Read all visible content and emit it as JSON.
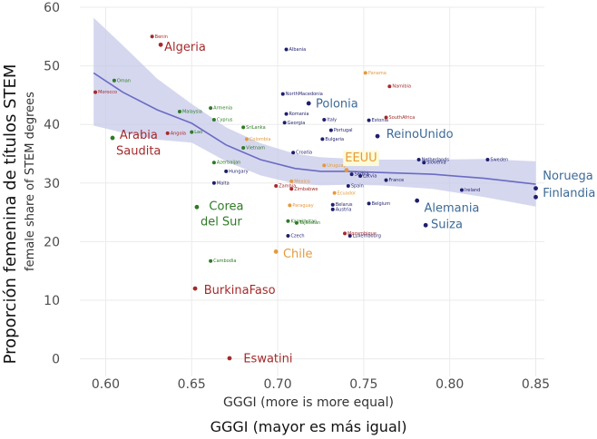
{
  "colors": {
    "band": "#c7c9ea",
    "line": "#6b6bc2",
    "region": {
      "red": "#a52a2a",
      "blue": "#1f1f6e",
      "green": "#2f7a26",
      "orange": "#e49a3c",
      "steel": "#3d6a96"
    }
  },
  "chart_data": {
    "type": "scatter",
    "xlabel_inner": "GGGI (more is more equal)",
    "xlabel_outer": "GGGI (mayor es más igual)",
    "ylabel_outer": "Proporción femenina de títulos STEM",
    "ylabel_inner": "female share of STEM degrees",
    "xlim": [
      0.585,
      0.855
    ],
    "ylim": [
      -3,
      60
    ],
    "xticks": [
      "0.60",
      "0.65",
      "0.70",
      "0.75",
      "0.80",
      "0.85"
    ],
    "yticks": [
      "0",
      "10",
      "20",
      "30",
      "40",
      "50",
      "60"
    ],
    "grid": true,
    "big_labels": [
      {
        "text": "Algeria",
        "x": 0.632,
        "y": 53.2,
        "color": "red"
      },
      {
        "text": "Arabia",
        "x": 0.606,
        "y": 38.2,
        "color": "red"
      },
      {
        "text": "Saudita",
        "x": 0.604,
        "y": 35.5,
        "color": "red"
      },
      {
        "text": "Polonia",
        "x": 0.72,
        "y": 43.5,
        "color": "steel"
      },
      {
        "text": "ReinoUnido",
        "x": 0.761,
        "y": 38.3,
        "color": "steel"
      },
      {
        "text": "EEUU",
        "x": 0.737,
        "y": 34.3,
        "color": "orange"
      },
      {
        "text": "Noruega",
        "x": 0.852,
        "y": 31.2,
        "color": "steel"
      },
      {
        "text": "Finlandia",
        "x": 0.852,
        "y": 28.3,
        "color": "steel"
      },
      {
        "text": "Alemania",
        "x": 0.783,
        "y": 25.7,
        "color": "steel"
      },
      {
        "text": "Suiza",
        "x": 0.787,
        "y": 22.9,
        "color": "steel"
      },
      {
        "text": "Corea",
        "x": 0.658,
        "y": 26.0,
        "color": "green"
      },
      {
        "text": "del Sur",
        "x": 0.653,
        "y": 23.4,
        "color": "green"
      },
      {
        "text": "Chile",
        "x": 0.701,
        "y": 17.9,
        "color": "orange"
      },
      {
        "text": "BurkinaFaso",
        "x": 0.655,
        "y": 11.7,
        "color": "red"
      },
      {
        "text": "Eswatini",
        "x": 0.678,
        "y": 0.0,
        "color": "red"
      }
    ],
    "small_labels": [
      {
        "text": "Benin",
        "x": 0.627,
        "y": 55.0,
        "color": "red"
      },
      {
        "text": "Albania",
        "x": 0.705,
        "y": 52.8,
        "color": "blue"
      },
      {
        "text": "Oman",
        "x": 0.605,
        "y": 47.5,
        "color": "green"
      },
      {
        "text": "Morocco",
        "x": 0.594,
        "y": 45.5,
        "color": "red"
      },
      {
        "text": "Panama",
        "x": 0.751,
        "y": 48.8,
        "color": "orange"
      },
      {
        "text": "Namibia",
        "x": 0.765,
        "y": 46.5,
        "color": "red"
      },
      {
        "text": "NorthMacedonia",
        "x": 0.703,
        "y": 45.2,
        "color": "blue"
      },
      {
        "text": "Malaysia",
        "x": 0.643,
        "y": 42.2,
        "color": "green"
      },
      {
        "text": "Armenia",
        "x": 0.661,
        "y": 42.8,
        "color": "green"
      },
      {
        "text": "Romania",
        "x": 0.705,
        "y": 41.8,
        "color": "blue"
      },
      {
        "text": "Georgia",
        "x": 0.704,
        "y": 40.3,
        "color": "blue"
      },
      {
        "text": "Italy",
        "x": 0.727,
        "y": 40.8,
        "color": "blue"
      },
      {
        "text": "Estonia",
        "x": 0.753,
        "y": 40.7,
        "color": "blue"
      },
      {
        "text": "SouthAfrica",
        "x": 0.763,
        "y": 41.2,
        "color": "red"
      },
      {
        "text": "Cyprus",
        "x": 0.663,
        "y": 40.8,
        "color": "green"
      },
      {
        "text": "SriLanka",
        "x": 0.68,
        "y": 39.5,
        "color": "green"
      },
      {
        "text": "Portugal",
        "x": 0.731,
        "y": 39.0,
        "color": "blue"
      },
      {
        "text": "Bulgaria",
        "x": 0.726,
        "y": 37.5,
        "color": "blue"
      },
      {
        "text": "Angola",
        "x": 0.636,
        "y": 38.5,
        "color": "red"
      },
      {
        "text": "Lao",
        "x": 0.65,
        "y": 38.7,
        "color": "green"
      },
      {
        "text": "Vietnam",
        "x": 0.68,
        "y": 36.0,
        "color": "green"
      },
      {
        "text": "Colombia",
        "x": 0.682,
        "y": 37.5,
        "color": "orange"
      },
      {
        "text": "Croatia",
        "x": 0.709,
        "y": 35.2,
        "color": "blue"
      },
      {
        "text": "Azerbaijan",
        "x": 0.663,
        "y": 33.5,
        "color": "green"
      },
      {
        "text": "Hungary",
        "x": 0.67,
        "y": 32.0,
        "color": "blue"
      },
      {
        "text": "Netherlands",
        "x": 0.782,
        "y": 34.0,
        "color": "blue"
      },
      {
        "text": "Slovenia",
        "x": 0.785,
        "y": 33.5,
        "color": "blue"
      },
      {
        "text": "Sweden",
        "x": 0.822,
        "y": 34.0,
        "color": "blue"
      },
      {
        "text": "Uruguay",
        "x": 0.727,
        "y": 33.0,
        "color": "orange"
      },
      {
        "text": "Serbia",
        "x": 0.743,
        "y": 31.5,
        "color": "blue"
      },
      {
        "text": "Latvia",
        "x": 0.748,
        "y": 31.2,
        "color": "blue"
      },
      {
        "text": "France",
        "x": 0.763,
        "y": 30.5,
        "color": "blue"
      },
      {
        "text": "Mexico",
        "x": 0.708,
        "y": 30.3,
        "color": "orange"
      },
      {
        "text": "Malta",
        "x": 0.663,
        "y": 30.0,
        "color": "blue"
      },
      {
        "text": "Zambia",
        "x": 0.699,
        "y": 29.5,
        "color": "red"
      },
      {
        "text": "Zimbabwe",
        "x": 0.708,
        "y": 29.0,
        "color": "red"
      },
      {
        "text": "Spain",
        "x": 0.741,
        "y": 29.5,
        "color": "blue"
      },
      {
        "text": "Ireland",
        "x": 0.807,
        "y": 28.8,
        "color": "blue"
      },
      {
        "text": "Ecuador",
        "x": 0.733,
        "y": 28.3,
        "color": "orange"
      },
      {
        "text": "Belgium",
        "x": 0.753,
        "y": 26.5,
        "color": "blue"
      },
      {
        "text": "Belarus",
        "x": 0.732,
        "y": 26.3,
        "color": "blue"
      },
      {
        "text": "Austria",
        "x": 0.732,
        "y": 25.5,
        "color": "blue"
      },
      {
        "text": "Paraguay",
        "x": 0.707,
        "y": 26.2,
        "color": "orange"
      },
      {
        "text": "Kazakhstan",
        "x": 0.706,
        "y": 23.5,
        "color": "green"
      },
      {
        "text": "Tajikistan",
        "x": 0.711,
        "y": 23.2,
        "color": "green"
      },
      {
        "text": "Czech",
        "x": 0.706,
        "y": 21.0,
        "color": "blue"
      },
      {
        "text": "Mozambique",
        "x": 0.739,
        "y": 21.4,
        "color": "red"
      },
      {
        "text": "Luxembourg",
        "x": 0.742,
        "y": 21.0,
        "color": "blue"
      },
      {
        "text": "Cambodia",
        "x": 0.661,
        "y": 16.7,
        "color": "green"
      }
    ],
    "loess_curve": {
      "x": [
        0.593,
        0.61,
        0.63,
        0.65,
        0.67,
        0.69,
        0.71,
        0.725,
        0.74,
        0.76,
        0.79,
        0.82,
        0.85
      ],
      "y": [
        48.8,
        45.5,
        42.5,
        40.2,
        36.5,
        34.0,
        32.5,
        32.0,
        32.0,
        31.8,
        31.5,
        30.8,
        29.8
      ]
    },
    "confidence_band": {
      "x": [
        0.593,
        0.61,
        0.63,
        0.65,
        0.67,
        0.69,
        0.71,
        0.725,
        0.74,
        0.76,
        0.79,
        0.82,
        0.85
      ],
      "upper": [
        58.2,
        53.5,
        47.8,
        43.5,
        39.5,
        36.8,
        35.0,
        34.4,
        34.2,
        34.0,
        34.0,
        34.1,
        33.7
      ],
      "lower": [
        39.8,
        38.6,
        37.4,
        36.9,
        33.7,
        31.3,
        29.9,
        29.6,
        29.7,
        29.6,
        29.0,
        27.6,
        26.0
      ]
    }
  }
}
